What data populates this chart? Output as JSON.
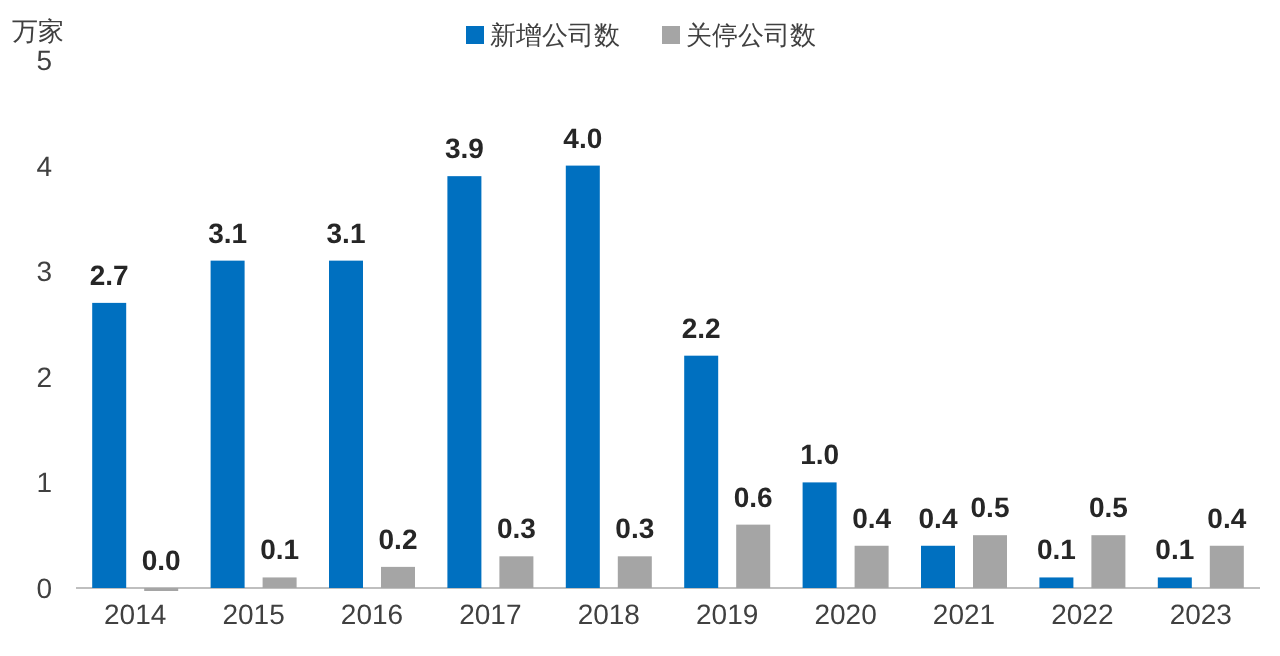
{
  "chart_data": {
    "type": "bar",
    "ylabel": "万家",
    "categories": [
      "2014",
      "2015",
      "2016",
      "2017",
      "2018",
      "2019",
      "2020",
      "2021",
      "2022",
      "2023"
    ],
    "series": [
      {
        "name": "新增公司数",
        "color": "#0070c0",
        "values": [
          2.7,
          3.1,
          3.1,
          3.9,
          4.0,
          2.2,
          1.0,
          0.4,
          0.1,
          0.1
        ],
        "value_labels": [
          "2.7",
          "3.1",
          "3.1",
          "3.9",
          "4.0",
          "2.2",
          "1.0",
          "0.4",
          "0.1",
          "0.1"
        ]
      },
      {
        "name": "关停公司数",
        "color": "#a5a5a5",
        "values": [
          0.0,
          0.1,
          0.2,
          0.3,
          0.3,
          0.6,
          0.4,
          0.5,
          0.5,
          0.4
        ],
        "value_labels": [
          "0.0",
          "0.1",
          "0.2",
          "0.3",
          "0.3",
          "0.6",
          "0.4",
          "0.5",
          "0.5",
          "0.4"
        ]
      }
    ],
    "ylim": [
      0,
      5
    ],
    "yticks": [
      0,
      1,
      2,
      3,
      4,
      5
    ],
    "legend": "top"
  }
}
